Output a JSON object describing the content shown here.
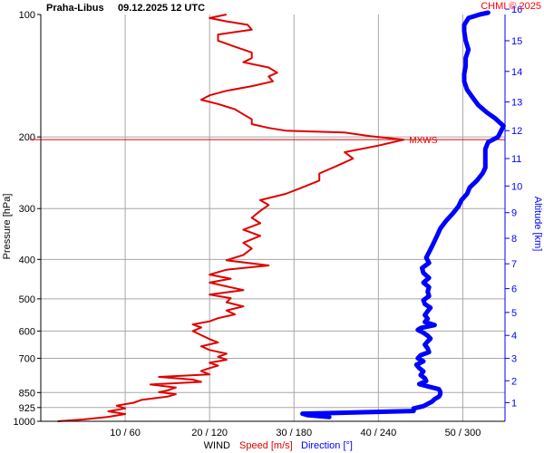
{
  "header": {
    "station": "Praha-Libus",
    "datetime": "09.12.2025 12 UTC",
    "credit": "CHMI © 2025"
  },
  "colors": {
    "speed": "#e00000",
    "direction": "#0000ff",
    "grid": "#a8a8a8",
    "text": "#000000",
    "credit": "#ff0000",
    "mxws": "#e00000"
  },
  "chart_data": {
    "type": "line",
    "y_axis": {
      "label": "Pressure [hPa]",
      "scale": "log",
      "range": [
        100,
        1000
      ],
      "ticks": [
        100,
        200,
        300,
        400,
        500,
        600,
        700,
        850,
        925,
        1000
      ]
    },
    "y2_axis": {
      "label": "Altitude [km]",
      "ticks": [
        1,
        2,
        3,
        4,
        5,
        6,
        7,
        8,
        9,
        10,
        11,
        12,
        13,
        14,
        15,
        16
      ],
      "tick_pressures": [
        900,
        795,
        700,
        615,
        540,
        472,
        410,
        355,
        307,
        264,
        226,
        193,
        164,
        138,
        116,
        97
      ]
    },
    "x_axis": {
      "label_prefix": "WIND",
      "label_speed": "Speed [m/s]",
      "label_direction": "Direction [°]",
      "speed_range": [
        0,
        55
      ],
      "direction_range": [
        0,
        330
      ],
      "tick_labels": [
        "10 / 60",
        "20 / 120",
        "30 / 180",
        "40 / 240",
        "50 / 300"
      ],
      "tick_speeds": [
        10,
        20,
        30,
        40,
        50
      ]
    },
    "annotation": {
      "text": "MXWS",
      "pressure": 203,
      "speed": 43
    },
    "series": [
      {
        "name": "Speed [m/s]",
        "unit": "m/s",
        "points": [
          [
            1000,
            2
          ],
          [
            990,
            5
          ],
          [
            975,
            8
          ],
          [
            960,
            10
          ],
          [
            945,
            8
          ],
          [
            930,
            10
          ],
          [
            915,
            9
          ],
          [
            900,
            11
          ],
          [
            885,
            12
          ],
          [
            870,
            15
          ],
          [
            858,
            16
          ],
          [
            848,
            14
          ],
          [
            840,
            15
          ],
          [
            826,
            16
          ],
          [
            812,
            13
          ],
          [
            800,
            19
          ],
          [
            790,
            18
          ],
          [
            778,
            14
          ],
          [
            767,
            20
          ],
          [
            752,
            19
          ],
          [
            740,
            20
          ],
          [
            730,
            21
          ],
          [
            718,
            20
          ],
          [
            706,
            22
          ],
          [
            694,
            21
          ],
          [
            682,
            22
          ],
          [
            668,
            20
          ],
          [
            654,
            19
          ],
          [
            640,
            21
          ],
          [
            628,
            20
          ],
          [
            614,
            19
          ],
          [
            600,
            18
          ],
          [
            588,
            19
          ],
          [
            578,
            18
          ],
          [
            568,
            20
          ],
          [
            558,
            21
          ],
          [
            546,
            23
          ],
          [
            534,
            22
          ],
          [
            522,
            24
          ],
          [
            510,
            22
          ],
          [
            498,
            22.5
          ],
          [
            488,
            20
          ],
          [
            476,
            24
          ],
          [
            466,
            22
          ],
          [
            456,
            20
          ],
          [
            446,
            22.5
          ],
          [
            436,
            20
          ],
          [
            424,
            22
          ],
          [
            414,
            27
          ],
          [
            402,
            22
          ],
          [
            390,
            24
          ],
          [
            376,
            25
          ],
          [
            364,
            24
          ],
          [
            350,
            26
          ],
          [
            338,
            24
          ],
          [
            326,
            26
          ],
          [
            316,
            25
          ],
          [
            304,
            26
          ],
          [
            294,
            27
          ],
          [
            286,
            26
          ],
          [
            276,
            29
          ],
          [
            266,
            31
          ],
          [
            256,
            33
          ],
          [
            246,
            33
          ],
          [
            236,
            35
          ],
          [
            226,
            37
          ],
          [
            218,
            36
          ],
          [
            210,
            40
          ],
          [
            203,
            43
          ],
          [
            199,
            39
          ],
          [
            195,
            36
          ],
          [
            193,
            29
          ],
          [
            190,
            27
          ],
          [
            186,
            25
          ],
          [
            181,
            25
          ],
          [
            176,
            24
          ],
          [
            171,
            23
          ],
          [
            166,
            21
          ],
          [
            162,
            19
          ],
          [
            158,
            20
          ],
          [
            154,
            22
          ],
          [
            150,
            25
          ],
          [
            146,
            27.5
          ],
          [
            142,
            27
          ],
          [
            139,
            28
          ],
          [
            135,
            27
          ],
          [
            131,
            24
          ],
          [
            128,
            25
          ],
          [
            124,
            25
          ],
          [
            120,
            23
          ],
          [
            116,
            21
          ],
          [
            112,
            21
          ],
          [
            109,
            25
          ],
          [
            106,
            24.5
          ],
          [
            104,
            22
          ],
          [
            102,
            20
          ],
          [
            100,
            22
          ]
        ]
      },
      {
        "name": "Direction [°]",
        "unit": "°",
        "points": [
          [
            976,
            205
          ],
          [
            966,
            190
          ],
          [
            958,
            186
          ],
          [
            952,
            220
          ],
          [
            943,
            265
          ],
          [
            930,
            265
          ],
          [
            918,
            272
          ],
          [
            906,
            275
          ],
          [
            895,
            278
          ],
          [
            882,
            280
          ],
          [
            870,
            283
          ],
          [
            858,
            284
          ],
          [
            846,
            284
          ],
          [
            834,
            283
          ],
          [
            822,
            276
          ],
          [
            810,
            269
          ],
          [
            796,
            274
          ],
          [
            784,
            273
          ],
          [
            770,
            270
          ],
          [
            754,
            272
          ],
          [
            740,
            269
          ],
          [
            726,
            267
          ],
          [
            712,
            272
          ],
          [
            700,
            268
          ],
          [
            688,
            270
          ],
          [
            676,
            276
          ],
          [
            662,
            275
          ],
          [
            648,
            273
          ],
          [
            636,
            275
          ],
          [
            626,
            277
          ],
          [
            616,
            275
          ],
          [
            606,
            272
          ],
          [
            596,
            268
          ],
          [
            590,
            270
          ],
          [
            580,
            280
          ],
          [
            570,
            273
          ],
          [
            560,
            275
          ],
          [
            548,
            273
          ],
          [
            536,
            275
          ],
          [
            526,
            277
          ],
          [
            515,
            273
          ],
          [
            504,
            272
          ],
          [
            492,
            276
          ],
          [
            480,
            275
          ],
          [
            468,
            276
          ],
          [
            456,
            272
          ],
          [
            444,
            276
          ],
          [
            432,
            272
          ],
          [
            420,
            271
          ],
          [
            408,
            276
          ],
          [
            396,
            274
          ],
          [
            384,
            276
          ],
          [
            372,
            278
          ],
          [
            360,
            280
          ],
          [
            348,
            282
          ],
          [
            336,
            284
          ],
          [
            322,
            288
          ],
          [
            308,
            293
          ],
          [
            296,
            297
          ],
          [
            286,
            299
          ],
          [
            276,
            303
          ],
          [
            266,
            305
          ],
          [
            256,
            310
          ],
          [
            246,
            314
          ],
          [
            238,
            316
          ],
          [
            230,
            316
          ],
          [
            222,
            316
          ],
          [
            214,
            316
          ],
          [
            206,
            318
          ],
          [
            200,
            325
          ],
          [
            194,
            327
          ],
          [
            188,
            329
          ],
          [
            180,
            323
          ],
          [
            174,
            317
          ],
          [
            167,
            311
          ],
          [
            160,
            307
          ],
          [
            153,
            303
          ],
          [
            146,
            301
          ],
          [
            140,
            301
          ],
          [
            134,
            302
          ],
          [
            128,
            302
          ],
          [
            122,
            304
          ],
          [
            116,
            302
          ],
          [
            110,
            301
          ],
          [
            106,
            301
          ],
          [
            102,
            304
          ],
          [
            100,
            312
          ],
          [
            99,
            318
          ]
        ]
      }
    ]
  }
}
